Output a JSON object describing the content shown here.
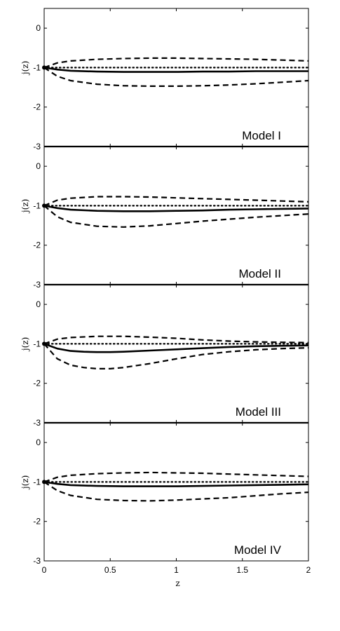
{
  "chart_data": [
    {
      "type": "line",
      "ylabel": "j(z)",
      "annotation": "Model I",
      "xlim": [
        0,
        2
      ],
      "ylim": [
        -3,
        0.5
      ],
      "yticks": [
        "0",
        "-1",
        "-2",
        "-3"
      ],
      "series": [
        {
          "style": "solid",
          "x": [
            0,
            0.1,
            0.2,
            0.4,
            0.6,
            0.8,
            1.0,
            1.2,
            1.4,
            1.6,
            1.8,
            2.0
          ],
          "y": [
            -1.0,
            -1.05,
            -1.08,
            -1.1,
            -1.11,
            -1.11,
            -1.11,
            -1.1,
            -1.1,
            -1.09,
            -1.09,
            -1.09
          ]
        },
        {
          "style": "dotted",
          "x": [
            0,
            0.2,
            0.5,
            1.0,
            1.5,
            2.0
          ],
          "y": [
            -1.0,
            -1.0,
            -1.0,
            -1.0,
            -1.0,
            -1.0
          ]
        },
        {
          "style": "dashed",
          "x": [
            0,
            0.1,
            0.2,
            0.4,
            0.6,
            0.8,
            1.0,
            1.2,
            1.4,
            1.6,
            1.8,
            2.0
          ],
          "y": [
            -1.0,
            -0.88,
            -0.83,
            -0.79,
            -0.77,
            -0.76,
            -0.76,
            -0.77,
            -0.78,
            -0.79,
            -0.81,
            -0.83
          ]
        },
        {
          "style": "dashed",
          "x": [
            0,
            0.1,
            0.2,
            0.4,
            0.6,
            0.8,
            1.0,
            1.2,
            1.4,
            1.6,
            1.8,
            2.0
          ],
          "y": [
            -1.0,
            -1.22,
            -1.33,
            -1.42,
            -1.46,
            -1.47,
            -1.47,
            -1.46,
            -1.44,
            -1.41,
            -1.37,
            -1.33
          ]
        }
      ]
    },
    {
      "type": "line",
      "ylabel": "j(z)",
      "annotation": "Model II",
      "xlim": [
        0,
        2
      ],
      "ylim": [
        -3,
        0.5
      ],
      "yticks": [
        "0",
        "-1",
        "-2",
        "-3"
      ],
      "series": [
        {
          "style": "solid",
          "x": [
            0,
            0.1,
            0.2,
            0.4,
            0.6,
            0.8,
            1.0,
            1.2,
            1.4,
            1.6,
            1.8,
            2.0
          ],
          "y": [
            -1.0,
            -1.06,
            -1.1,
            -1.13,
            -1.14,
            -1.14,
            -1.13,
            -1.12,
            -1.1,
            -1.09,
            -1.08,
            -1.07
          ]
        },
        {
          "style": "dotted",
          "x": [
            0,
            0.2,
            0.5,
            1.0,
            1.5,
            2.0
          ],
          "y": [
            -1.0,
            -1.0,
            -1.0,
            -1.0,
            -1.0,
            -1.0
          ]
        },
        {
          "style": "dashed",
          "x": [
            0,
            0.1,
            0.2,
            0.4,
            0.6,
            0.8,
            1.0,
            1.2,
            1.4,
            1.6,
            1.8,
            2.0
          ],
          "y": [
            -1.0,
            -0.86,
            -0.81,
            -0.77,
            -0.77,
            -0.78,
            -0.8,
            -0.82,
            -0.84,
            -0.86,
            -0.88,
            -0.9
          ]
        },
        {
          "style": "dashed",
          "x": [
            0,
            0.1,
            0.2,
            0.4,
            0.6,
            0.8,
            1.0,
            1.2,
            1.4,
            1.6,
            1.8,
            2.0
          ],
          "y": [
            -1.0,
            -1.28,
            -1.42,
            -1.52,
            -1.54,
            -1.51,
            -1.45,
            -1.39,
            -1.34,
            -1.29,
            -1.25,
            -1.21
          ]
        }
      ]
    },
    {
      "type": "line",
      "ylabel": "j(z)",
      "annotation": "Model III",
      "xlim": [
        0,
        2
      ],
      "ylim": [
        -3,
        0.5
      ],
      "yticks": [
        "0",
        "-1",
        "-2",
        "-3"
      ],
      "series": [
        {
          "style": "solid",
          "x": [
            0,
            0.1,
            0.2,
            0.3,
            0.4,
            0.5,
            0.6,
            0.8,
            1.0,
            1.2,
            1.4,
            1.6,
            1.8,
            2.0
          ],
          "y": [
            -1.0,
            -1.12,
            -1.18,
            -1.2,
            -1.21,
            -1.21,
            -1.2,
            -1.17,
            -1.14,
            -1.11,
            -1.08,
            -1.06,
            -1.05,
            -1.04
          ]
        },
        {
          "style": "dotted",
          "x": [
            0,
            0.2,
            0.5,
            1.0,
            1.5,
            2.0
          ],
          "y": [
            -1.0,
            -1.0,
            -1.0,
            -1.0,
            -1.0,
            -1.0
          ]
        },
        {
          "style": "dashed",
          "x": [
            0,
            0.1,
            0.2,
            0.4,
            0.6,
            0.8,
            1.0,
            1.2,
            1.4,
            1.6,
            1.8,
            2.0
          ],
          "y": [
            -1.0,
            -0.88,
            -0.84,
            -0.81,
            -0.81,
            -0.83,
            -0.86,
            -0.9,
            -0.93,
            -0.95,
            -0.96,
            -0.97
          ]
        },
        {
          "style": "dashed",
          "x": [
            0,
            0.1,
            0.2,
            0.3,
            0.4,
            0.5,
            0.6,
            0.8,
            1.0,
            1.2,
            1.4,
            1.6,
            1.8,
            2.0
          ],
          "y": [
            -1.0,
            -1.38,
            -1.54,
            -1.6,
            -1.63,
            -1.63,
            -1.6,
            -1.5,
            -1.38,
            -1.27,
            -1.2,
            -1.15,
            -1.12,
            -1.1
          ]
        }
      ]
    },
    {
      "type": "line",
      "ylabel": "j(z)",
      "annotation": "Model IV",
      "xlabel": "z",
      "xlim": [
        0,
        2
      ],
      "ylim": [
        -3,
        0.5
      ],
      "xticks": [
        "0",
        "0.5",
        "1",
        "1.5",
        "2"
      ],
      "yticks": [
        "0",
        "-1",
        "-2",
        "-3"
      ],
      "series": [
        {
          "style": "solid",
          "x": [
            0,
            0.1,
            0.2,
            0.4,
            0.6,
            0.8,
            1.0,
            1.2,
            1.4,
            1.6,
            1.8,
            2.0
          ],
          "y": [
            -1.0,
            -1.05,
            -1.08,
            -1.1,
            -1.11,
            -1.11,
            -1.11,
            -1.1,
            -1.09,
            -1.08,
            -1.07,
            -1.06
          ]
        },
        {
          "style": "dotted",
          "x": [
            0,
            0.2,
            0.5,
            1.0,
            1.5,
            2.0
          ],
          "y": [
            -1.0,
            -1.0,
            -1.0,
            -1.0,
            -1.0,
            -1.0
          ]
        },
        {
          "style": "dashed",
          "x": [
            0,
            0.1,
            0.2,
            0.4,
            0.6,
            0.8,
            1.0,
            1.2,
            1.4,
            1.6,
            1.8,
            2.0
          ],
          "y": [
            -1.0,
            -0.88,
            -0.83,
            -0.79,
            -0.77,
            -0.76,
            -0.77,
            -0.78,
            -0.8,
            -0.82,
            -0.84,
            -0.86
          ]
        },
        {
          "style": "dashed",
          "x": [
            0,
            0.1,
            0.2,
            0.4,
            0.6,
            0.8,
            1.0,
            1.2,
            1.4,
            1.6,
            1.8,
            2.0
          ],
          "y": [
            -1.0,
            -1.22,
            -1.34,
            -1.44,
            -1.47,
            -1.48,
            -1.46,
            -1.43,
            -1.4,
            -1.35,
            -1.3,
            -1.26
          ]
        }
      ]
    }
  ]
}
